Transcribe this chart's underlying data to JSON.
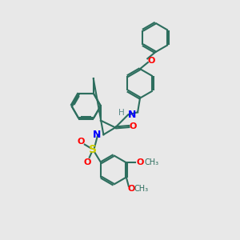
{
  "bg_color": "#e8e8e8",
  "bond_color": "#2d6e5e",
  "bond_width": 1.5,
  "N_color": "#0000ff",
  "O_color": "#ff0000",
  "S_color": "#cccc00",
  "H_color": "#5c8a8a",
  "figsize": [
    3.0,
    3.0
  ],
  "dpi": 100,
  "xlim": [
    0,
    10
  ],
  "ylim": [
    0,
    10
  ]
}
